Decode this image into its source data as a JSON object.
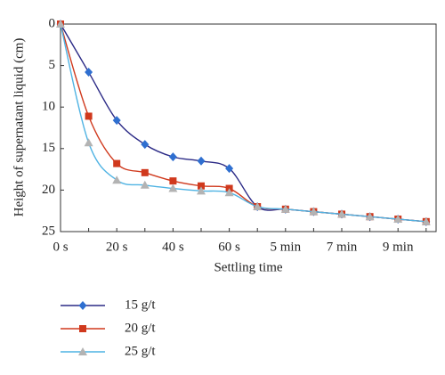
{
  "chart_data": {
    "type": "line",
    "x_label": "Settling time",
    "y_label": "Height of supernatant liquid (cm)",
    "categories": [
      "0 s",
      null,
      "20 s",
      null,
      "40 s",
      null,
      "60 s",
      null,
      "5 min",
      null,
      "7 min",
      null,
      "9 min",
      null
    ],
    "ylim": [
      0,
      25
    ],
    "yticks": [
      0,
      5,
      10,
      15,
      20,
      25
    ],
    "y_inverted": true,
    "smooth": true,
    "series": [
      {
        "name": "15 g/t",
        "color": "#2b2a86",
        "marker_color": "#2f6fd0",
        "marker": "diamond",
        "values": [
          0,
          5.8,
          11.6,
          14.5,
          16.0,
          16.5,
          17.4,
          22.0,
          22.3,
          22.6,
          22.9,
          23.2,
          23.5,
          23.8
        ]
      },
      {
        "name": "20 g/t",
        "color": "#d0391d",
        "marker_color": "#d0391d",
        "marker": "square",
        "values": [
          0,
          11.1,
          16.8,
          17.9,
          18.9,
          19.5,
          19.8,
          22.0,
          22.3,
          22.6,
          22.9,
          23.2,
          23.5,
          23.8
        ]
      },
      {
        "name": "25 g/t",
        "color": "#4fb3e3",
        "marker_color": "#b3b3b3",
        "marker": "triangle",
        "values": [
          0,
          14.3,
          18.8,
          19.4,
          19.8,
          20.1,
          20.3,
          22.0,
          22.3,
          22.6,
          22.9,
          23.2,
          23.5,
          23.8
        ]
      }
    ]
  }
}
